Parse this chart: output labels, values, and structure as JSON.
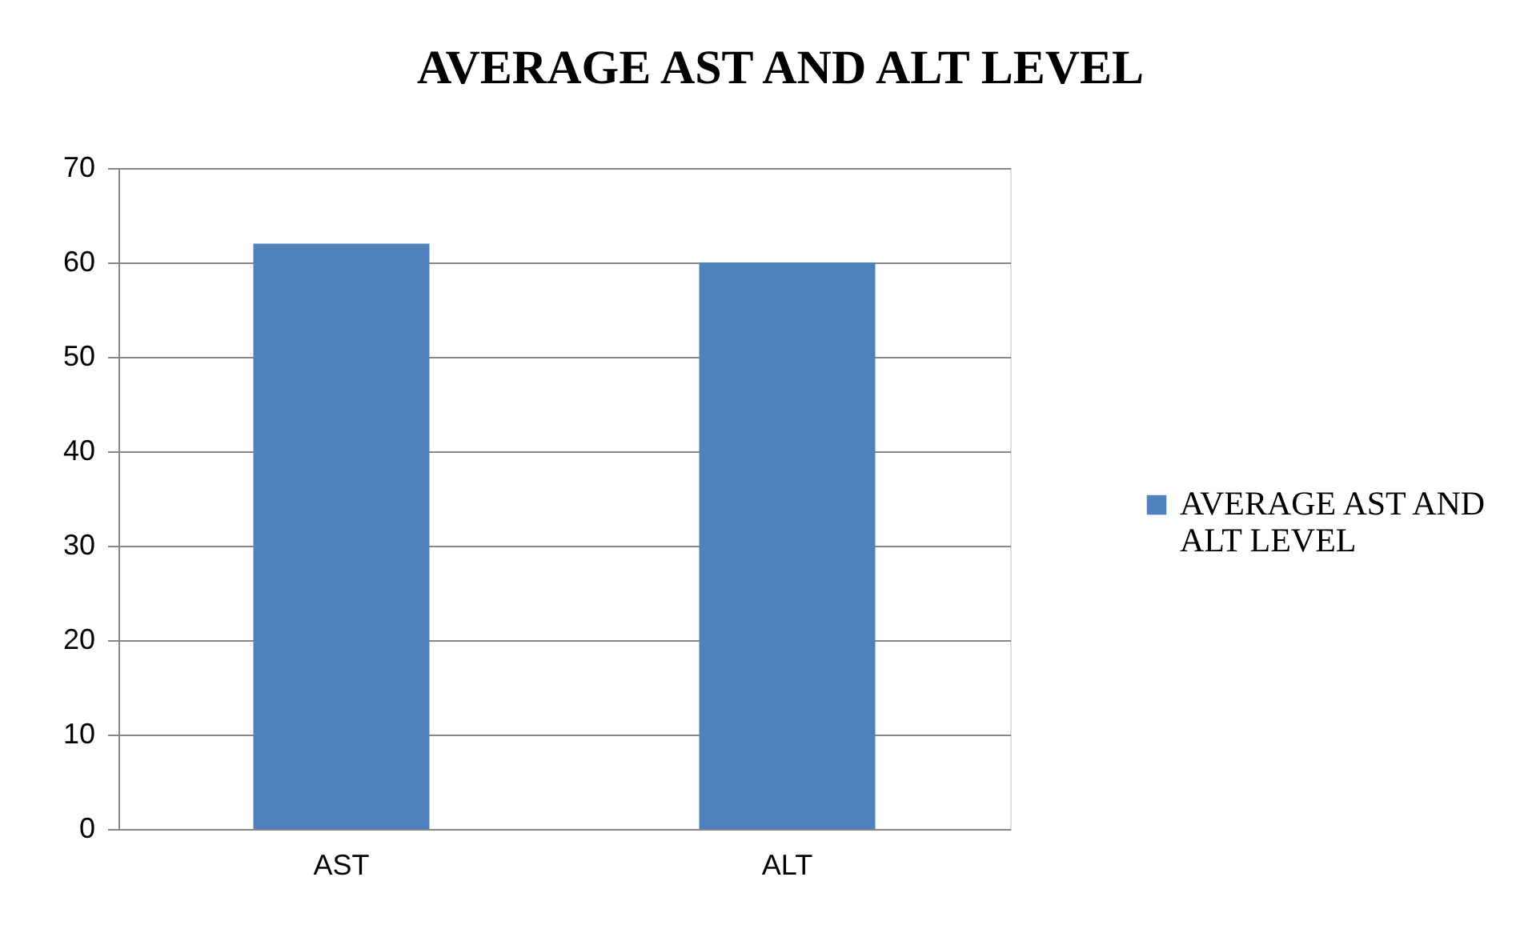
{
  "chart_data": {
    "type": "bar",
    "title": "AVERAGE AST AND ALT LEVEL",
    "categories": [
      "AST",
      "ALT"
    ],
    "series": [
      {
        "name": "AVERAGE AST AND ALT LEVEL",
        "color": "#4f81bd",
        "values": [
          62,
          60
        ]
      }
    ],
    "ylim": [
      0,
      70
    ],
    "yticks": [
      0,
      10,
      20,
      30,
      40,
      50,
      60,
      70
    ],
    "grid": "y",
    "legend": "right"
  }
}
